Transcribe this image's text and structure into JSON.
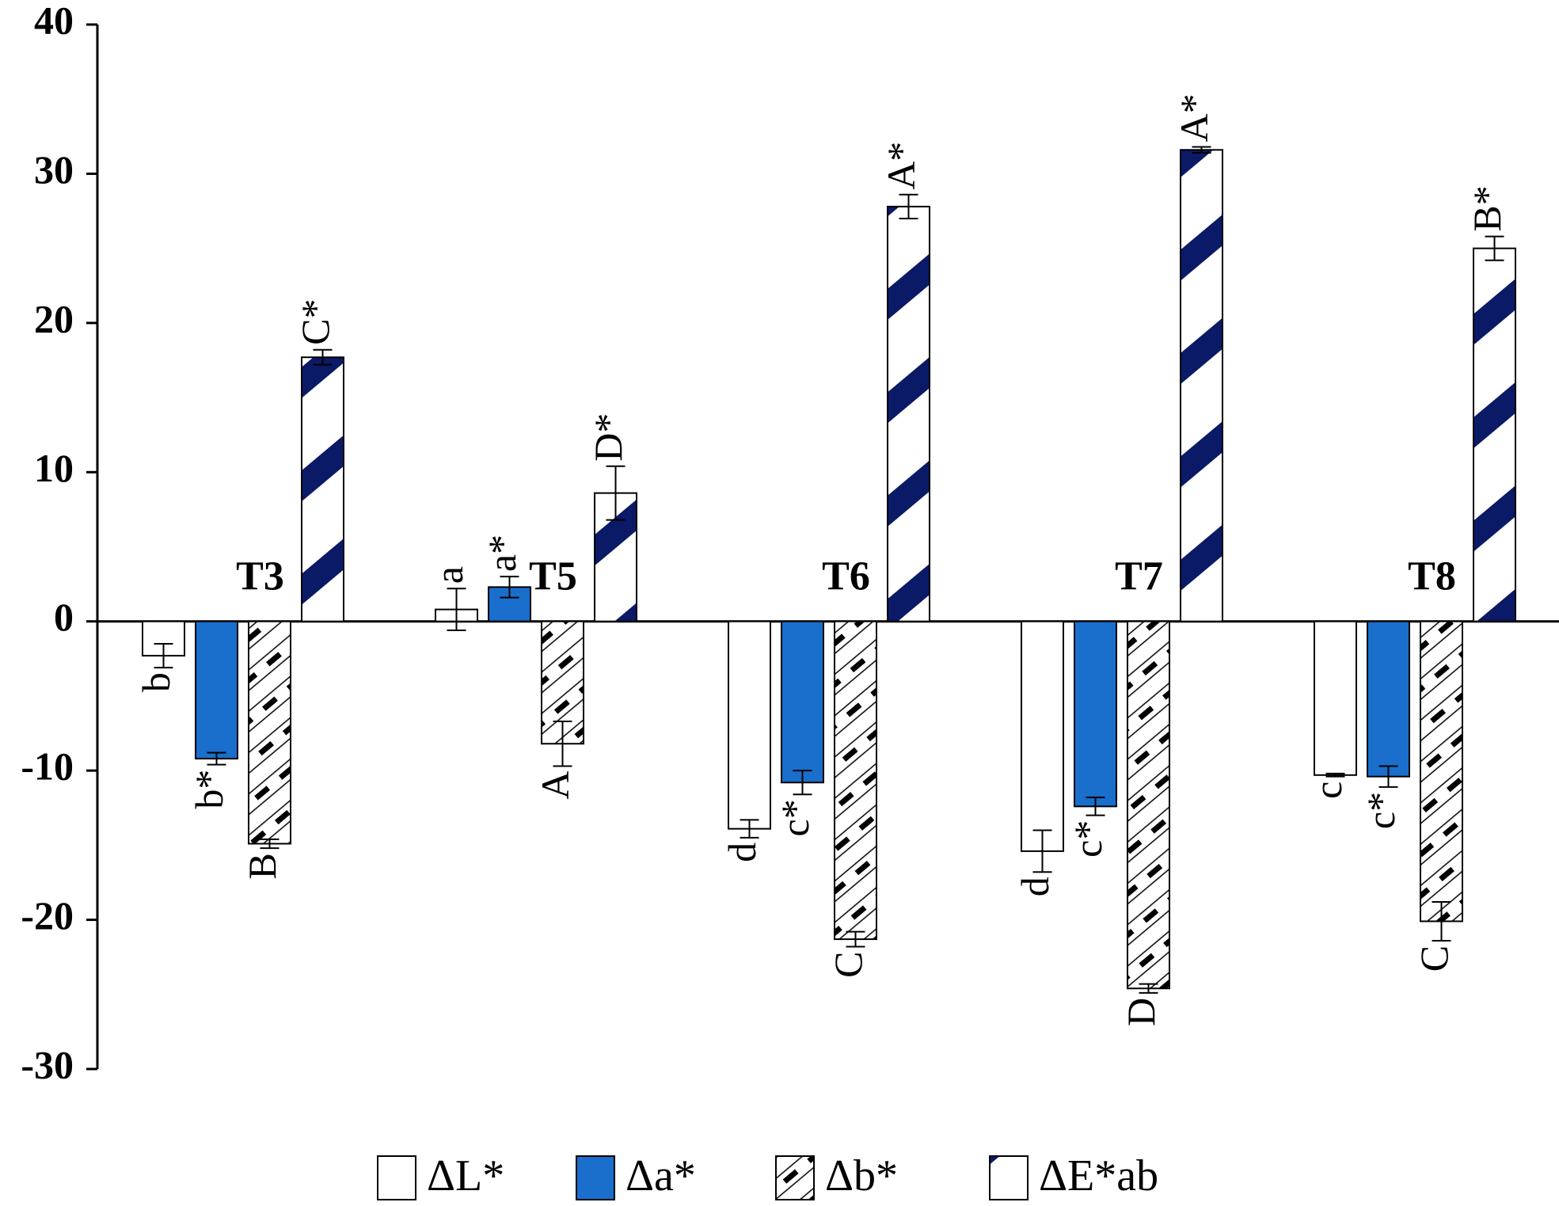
{
  "chart_data": {
    "type": "bar",
    "categories": [
      "T3",
      "T5",
      "T6",
      "T7",
      "T8"
    ],
    "series": [
      {
        "name": "ΔL*",
        "color": "#ffffff",
        "pattern": "none",
        "values": [
          -2.3,
          0.8,
          -13.9,
          -15.4,
          -10.3
        ],
        "errors": [
          0.8,
          1.4,
          0.6,
          1.4,
          0.1
        ],
        "labels": [
          "b",
          "a",
          "d",
          "d",
          "c"
        ]
      },
      {
        "name": "Δa*",
        "color": "#1a6ecc",
        "pattern": "none",
        "values": [
          -9.2,
          2.3,
          -10.8,
          -12.4,
          -10.4
        ],
        "errors": [
          0.4,
          0.7,
          0.8,
          0.6,
          0.7
        ],
        "labels": [
          "b*",
          "a*",
          "c*",
          "c*",
          "c*"
        ]
      },
      {
        "name": "Δb*",
        "color": "#000000",
        "pattern": "hatch",
        "values": [
          -14.9,
          -8.2,
          -21.3,
          -24.6,
          -20.1
        ],
        "errors": [
          0.3,
          1.5,
          0.5,
          0.3,
          1.3
        ],
        "labels": [
          "B",
          "A",
          "C",
          "D",
          "C"
        ]
      },
      {
        "name": "ΔE*ab",
        "color": "#0b1a66",
        "pattern": "stripe",
        "values": [
          17.7,
          8.6,
          27.8,
          31.6,
          25.0
        ],
        "errors": [
          0.5,
          1.8,
          0.8,
          0.2,
          0.8
        ],
        "labels": [
          "C*",
          "D*",
          "A*",
          "A*",
          "B*"
        ]
      }
    ],
    "ylim": [
      -30,
      40
    ],
    "yticks": [
      -30,
      -20,
      -10,
      0,
      10,
      20,
      30,
      40
    ],
    "legend": "bottom"
  }
}
